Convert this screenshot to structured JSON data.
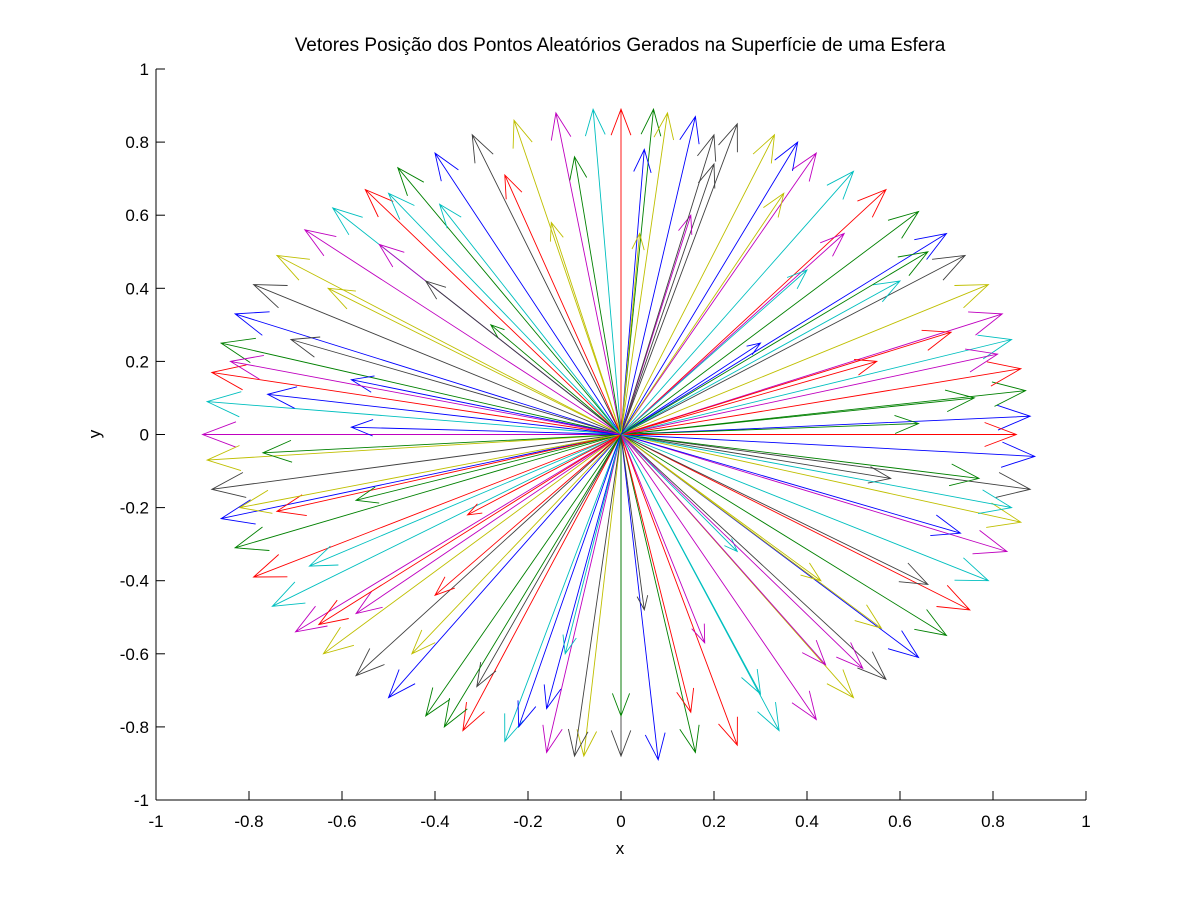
{
  "chart_data": {
    "type": "quiver",
    "title": "Vetores Posição dos Pontos Aleatórios Gerados na Superfície de uma Esfera",
    "xlabel": "x",
    "ylabel": "y",
    "xlim": [
      -1,
      1
    ],
    "ylim": [
      -1,
      1
    ],
    "xticks": [
      -1,
      -0.8,
      -0.6,
      -0.4,
      -0.2,
      0,
      0.2,
      0.4,
      0.6,
      0.8,
      1
    ],
    "xtick_labels": [
      "-1",
      "-0.8",
      "-0.6",
      "-0.4",
      "-0.2",
      "0",
      "0.2",
      "0.4",
      "0.6",
      "0.8",
      "1"
    ],
    "yticks": [
      -1,
      -0.8,
      -0.6,
      -0.4,
      -0.2,
      0,
      0.2,
      0.4,
      0.6,
      0.8,
      1
    ],
    "ytick_labels": [
      "-1",
      "-0.8",
      "-0.6",
      "-0.4",
      "-0.2",
      "0",
      "0.2",
      "0.4",
      "0.6",
      "0.8",
      "1"
    ],
    "grid": false,
    "legend": "none",
    "origin": [
      0,
      0
    ],
    "colors": [
      "#0000ff",
      "#008000",
      "#ff0000",
      "#00bfbf",
      "#bf00bf",
      "#bfbf00",
      "#404040"
    ],
    "vectors": [
      [
        0.88,
        0.05
      ],
      [
        0.87,
        0.12
      ],
      [
        0.86,
        0.18
      ],
      [
        0.84,
        0.26
      ],
      [
        0.82,
        0.33
      ],
      [
        0.79,
        0.41
      ],
      [
        0.74,
        0.49
      ],
      [
        0.7,
        0.55
      ],
      [
        0.64,
        0.61
      ],
      [
        0.57,
        0.67
      ],
      [
        0.5,
        0.72
      ],
      [
        0.42,
        0.77
      ],
      [
        0.33,
        0.82
      ],
      [
        0.25,
        0.85
      ],
      [
        0.16,
        0.87
      ],
      [
        0.07,
        0.89
      ],
      [
        0.0,
        0.89
      ],
      [
        -0.06,
        0.89
      ],
      [
        -0.14,
        0.88
      ],
      [
        -0.23,
        0.86
      ],
      [
        -0.32,
        0.82
      ],
      [
        -0.4,
        0.77
      ],
      [
        -0.48,
        0.73
      ],
      [
        -0.55,
        0.67
      ],
      [
        -0.62,
        0.62
      ],
      [
        -0.68,
        0.56
      ],
      [
        -0.74,
        0.49
      ],
      [
        -0.79,
        0.41
      ],
      [
        -0.83,
        0.33
      ],
      [
        -0.86,
        0.25
      ],
      [
        -0.88,
        0.17
      ],
      [
        -0.89,
        0.09
      ],
      [
        -0.9,
        0.0
      ],
      [
        -0.89,
        -0.07
      ],
      [
        -0.88,
        -0.15
      ],
      [
        -0.86,
        -0.23
      ],
      [
        -0.83,
        -0.31
      ],
      [
        -0.79,
        -0.39
      ],
      [
        -0.75,
        -0.47
      ],
      [
        -0.7,
        -0.54
      ],
      [
        -0.64,
        -0.6
      ],
      [
        -0.57,
        -0.66
      ],
      [
        -0.5,
        -0.72
      ],
      [
        -0.42,
        -0.77
      ],
      [
        -0.34,
        -0.81
      ],
      [
        -0.25,
        -0.84
      ],
      [
        -0.16,
        -0.87
      ],
      [
        -0.08,
        -0.88
      ],
      [
        0.0,
        -0.88
      ],
      [
        0.08,
        -0.89
      ],
      [
        0.16,
        -0.87
      ],
      [
        0.25,
        -0.85
      ],
      [
        0.34,
        -0.81
      ],
      [
        0.42,
        -0.78
      ],
      [
        0.5,
        -0.72
      ],
      [
        0.57,
        -0.67
      ],
      [
        0.64,
        -0.61
      ],
      [
        0.7,
        -0.55
      ],
      [
        0.75,
        -0.48
      ],
      [
        0.79,
        -0.4
      ],
      [
        0.83,
        -0.32
      ],
      [
        0.86,
        -0.24
      ],
      [
        0.88,
        -0.15
      ],
      [
        0.89,
        -0.06
      ],
      [
        0.76,
        0.1
      ],
      [
        0.71,
        0.28
      ],
      [
        0.6,
        0.42
      ],
      [
        0.48,
        0.55
      ],
      [
        0.35,
        0.66
      ],
      [
        0.2,
        0.74
      ],
      [
        0.05,
        0.78
      ],
      [
        -0.1,
        0.76
      ],
      [
        -0.25,
        0.71
      ],
      [
        -0.39,
        0.63
      ],
      [
        -0.52,
        0.52
      ],
      [
        -0.63,
        0.4
      ],
      [
        -0.71,
        0.26
      ],
      [
        -0.76,
        0.11
      ],
      [
        -0.77,
        -0.05
      ],
      [
        -0.74,
        -0.21
      ],
      [
        -0.67,
        -0.36
      ],
      [
        -0.57,
        -0.49
      ],
      [
        -0.45,
        -0.6
      ],
      [
        -0.31,
        -0.69
      ],
      [
        -0.16,
        -0.75
      ],
      [
        0.0,
        -0.77
      ],
      [
        0.15,
        -0.76
      ],
      [
        0.3,
        -0.71
      ],
      [
        0.44,
        -0.63
      ],
      [
        0.56,
        -0.53
      ],
      [
        0.66,
        -0.41
      ],
      [
        0.73,
        -0.27
      ],
      [
        0.77,
        -0.12
      ],
      [
        0.55,
        0.2
      ],
      [
        0.4,
        0.45
      ],
      [
        0.15,
        0.6
      ],
      [
        -0.15,
        0.58
      ],
      [
        -0.42,
        0.42
      ],
      [
        -0.58,
        0.15
      ],
      [
        -0.57,
        -0.18
      ],
      [
        -0.4,
        -0.44
      ],
      [
        -0.12,
        -0.6
      ],
      [
        0.18,
        -0.57
      ],
      [
        0.43,
        -0.4
      ],
      [
        0.58,
        -0.12
      ],
      [
        0.3,
        0.25
      ],
      [
        -0.28,
        0.3
      ],
      [
        -0.33,
        -0.22
      ],
      [
        0.25,
        -0.32
      ],
      [
        0.81,
        0.22
      ],
      [
        -0.82,
        -0.2
      ],
      [
        0.2,
        0.82
      ],
      [
        -0.22,
        -0.8
      ],
      [
        0.66,
        0.5
      ],
      [
        -0.65,
        -0.52
      ],
      [
        -0.5,
        0.66
      ],
      [
        0.52,
        -0.64
      ],
      [
        0.04,
        0.55
      ],
      [
        0.05,
        -0.48
      ],
      [
        -0.58,
        0.02
      ],
      [
        0.64,
        0.03
      ],
      [
        0.85,
        0.0
      ],
      [
        0.84,
        -0.2
      ],
      [
        -0.84,
        0.2
      ],
      [
        0.1,
        0.88
      ],
      [
        -0.1,
        -0.88
      ],
      [
        0.38,
        0.8
      ],
      [
        -0.38,
        -0.8
      ]
    ]
  }
}
